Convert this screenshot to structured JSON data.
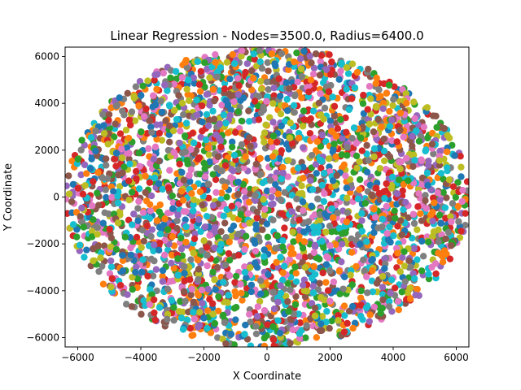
{
  "chart_data": {
    "type": "scatter",
    "title": "Linear Regression - Nodes=3500.0, Radius=6400.0",
    "xlabel": "X Coordinate",
    "ylabel": "Y Coordinate",
    "xlim": [
      -6400,
      6400
    ],
    "ylim": [
      -6400,
      6400
    ],
    "xticks": [
      -6000,
      -4000,
      -2000,
      0,
      2000,
      4000,
      6000
    ],
    "yticks": [
      -6000,
      -4000,
      -2000,
      0,
      2000,
      4000,
      6000
    ],
    "xtick_labels": [
      "−6000",
      "−4000",
      "−2000",
      "0",
      "2000",
      "4000",
      "6000"
    ],
    "ytick_labels": [
      "−6000",
      "−4000",
      "−2000",
      "0",
      "2000",
      "4000",
      "6000"
    ],
    "grid": false,
    "node_count": 3500,
    "radius": 6400,
    "distribution": "uniform random points inside a circle of the given radius centred at (0, 0)",
    "palette": [
      "#1f77b4",
      "#ff7f0e",
      "#2ca02c",
      "#d62728",
      "#9467bd",
      "#8c564b",
      "#e377c2",
      "#7f7f7f",
      "#bcbd22",
      "#17becf"
    ]
  }
}
